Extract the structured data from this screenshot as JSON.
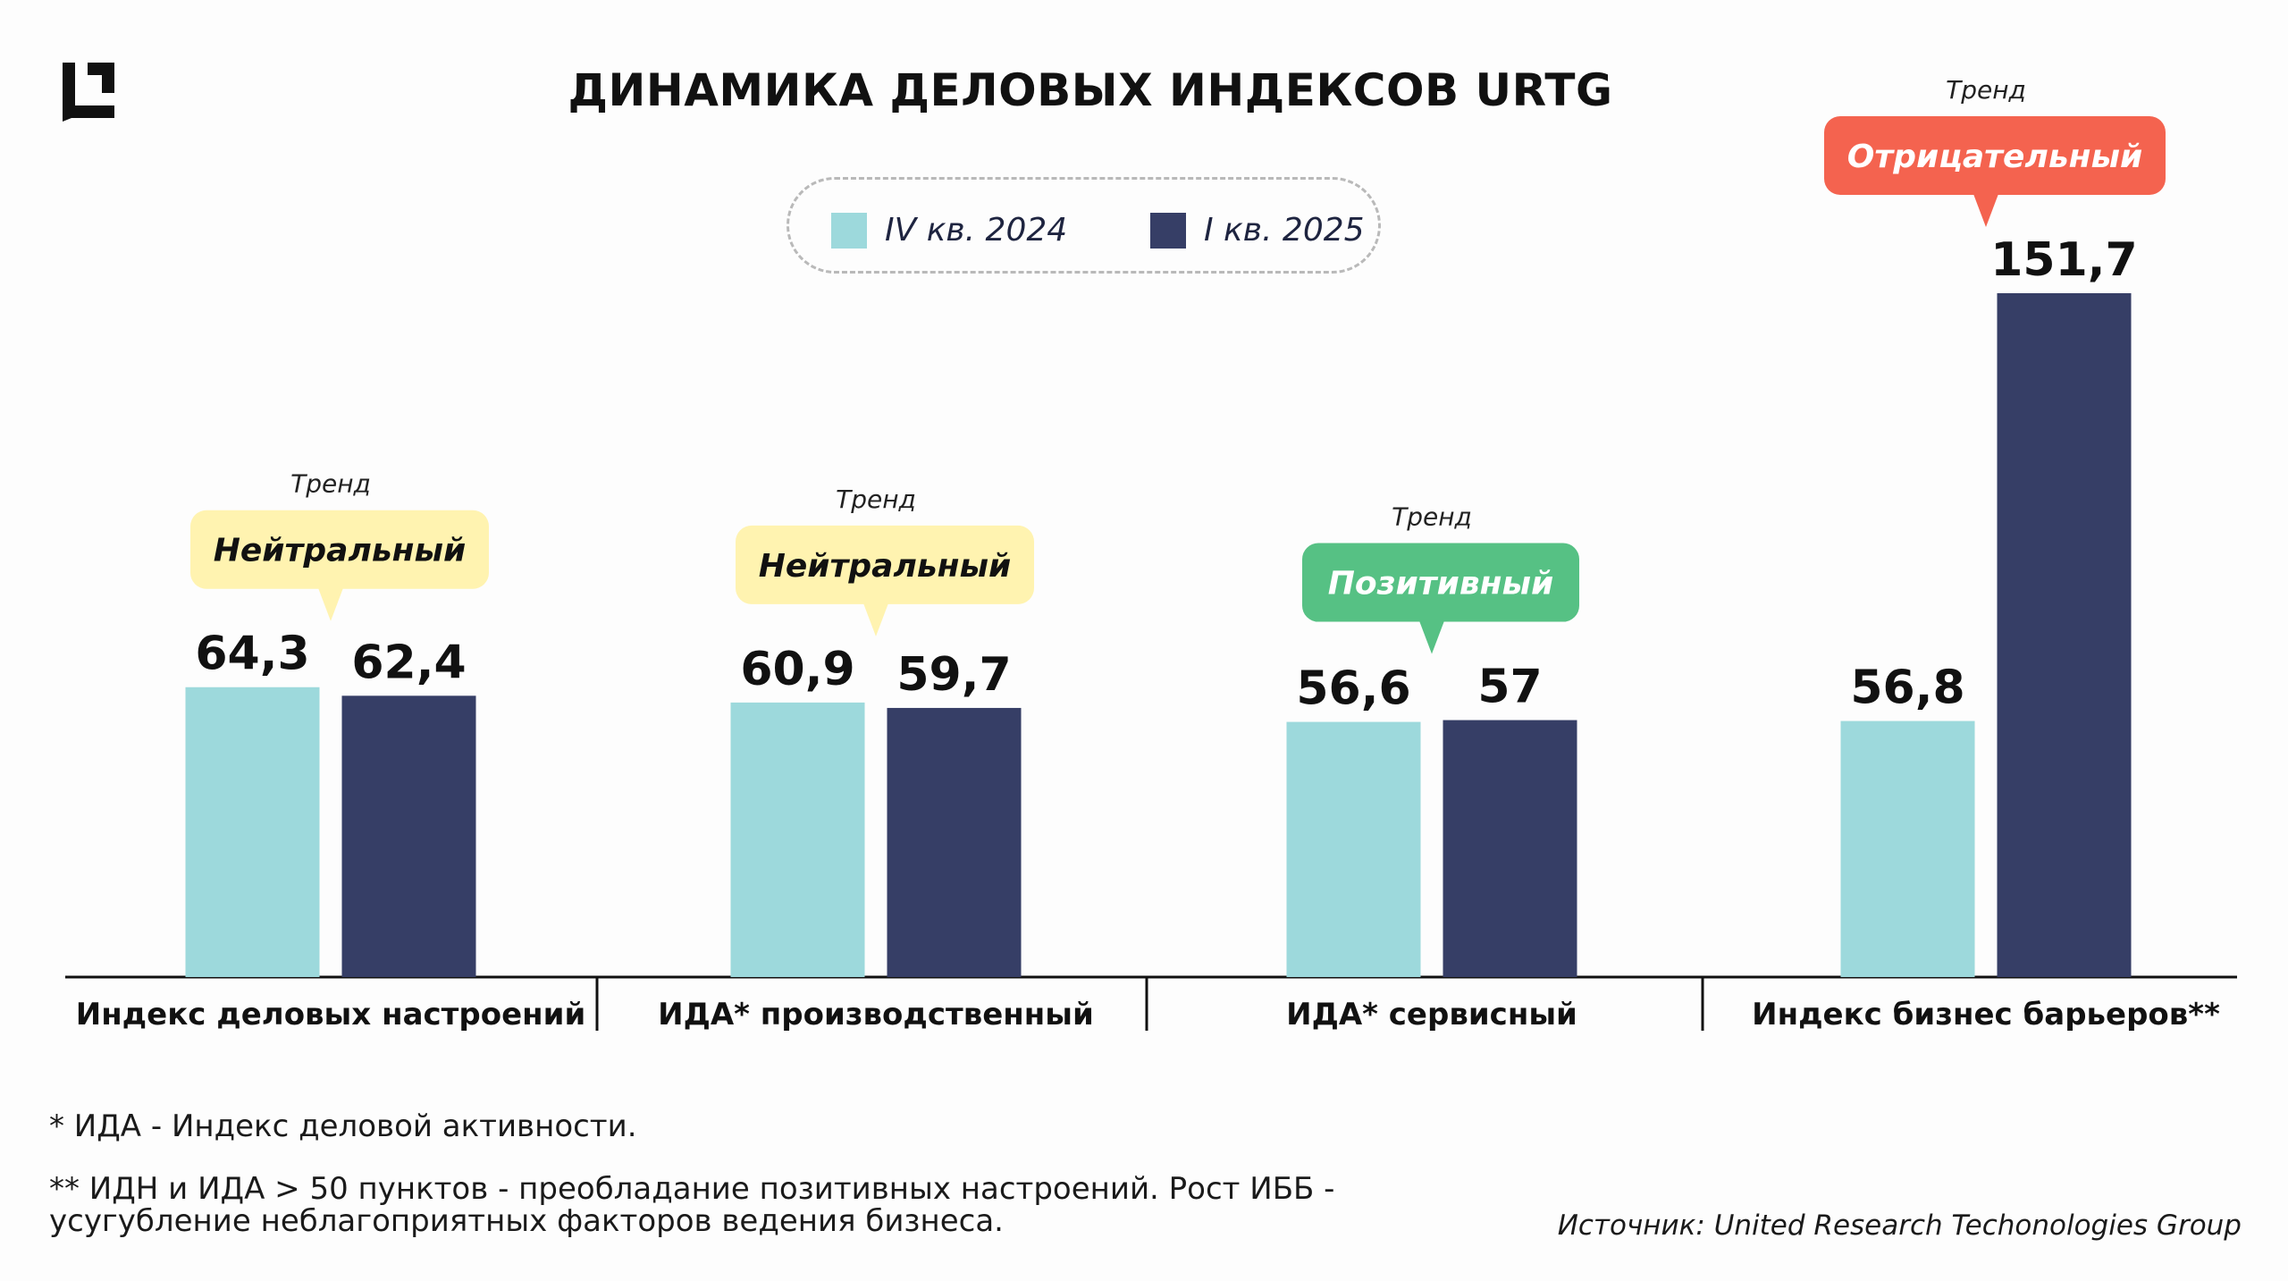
{
  "title": "ДИНАМИКА ДЕЛОВЫХ ИНДЕКСОВ URTG",
  "legend": [
    {
      "label": "IV кв. 2024",
      "color": "#9dd9dc"
    },
    {
      "label": "I кв. 2025",
      "color": "#363e66"
    }
  ],
  "chart_data": {
    "type": "bar",
    "categories": [
      "Индекс деловых настроений",
      "ИДА* производственный",
      "ИДА* сервисный",
      "Индекс бизнес барьеров**"
    ],
    "series": [
      {
        "name": "IV кв. 2024",
        "values": [
          64.3,
          60.9,
          56.6,
          56.8
        ],
        "labels": [
          "64,3",
          "60,9",
          "56,6",
          "56,8"
        ],
        "color": "#9dd9dc"
      },
      {
        "name": "I кв. 2025",
        "values": [
          62.4,
          59.7,
          57,
          151.7
        ],
        "labels": [
          "62,4",
          "59,7",
          "57",
          "151,7"
        ],
        "color": "#363e66"
      }
    ],
    "trends": [
      {
        "caption": "Тренд",
        "label": "Нейтральный",
        "bg": "#fff3b0",
        "fg": "#111111"
      },
      {
        "caption": "Тренд",
        "label": "Нейтральный",
        "bg": "#fff3b0",
        "fg": "#111111"
      },
      {
        "caption": "Тренд",
        "label": "Позитивный",
        "bg": "#56c184",
        "fg": "#ffffff"
      },
      {
        "caption": "Тренд",
        "label": "Отрицательный",
        "bg": "#f4634f",
        "fg": "#ffffff"
      }
    ],
    "ylim": [
      0,
      151.7
    ],
    "grid": false,
    "legend_position": "top-center"
  },
  "footnotes": {
    "ida": "* ИДА - Индекс деловой активности.",
    "idn": "** ИДН и ИДА > 50 пунктов - преобладание позитивных настроений. Рост ИББ - усугубление неблагоприятных факторов ведения бизнеса."
  },
  "source": "Источник: United Research Techonologies Group"
}
